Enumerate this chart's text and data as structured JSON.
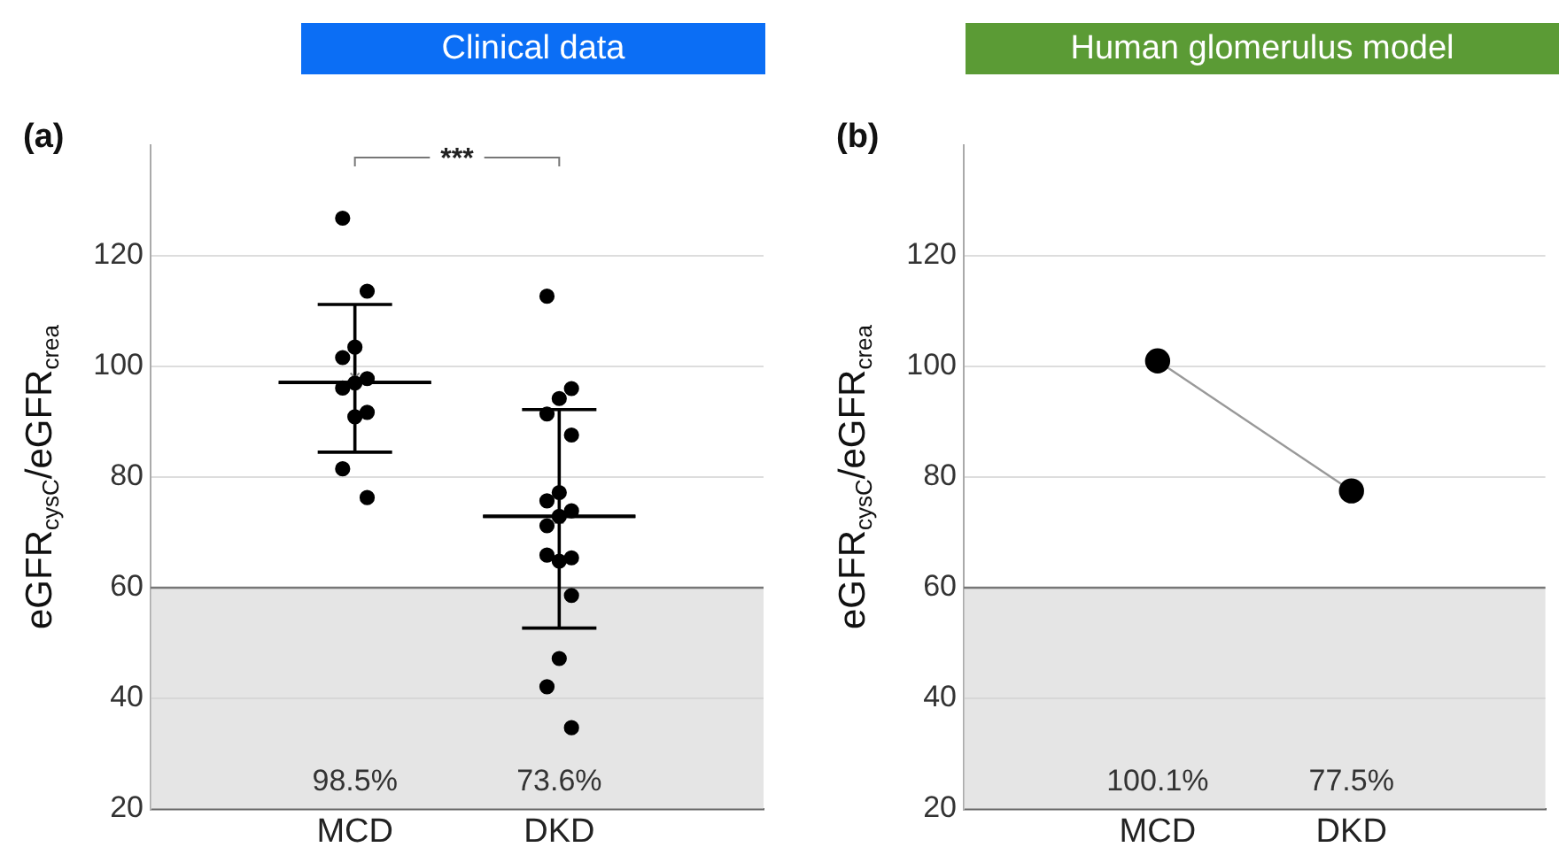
{
  "chart_data": [
    {
      "type": "box",
      "title": "Clinical data",
      "ylabel": "eGFR$_{cysC}$/eGFR$_{crea}$",
      "categories": [
        "MCD",
        "DKD"
      ],
      "ylim": [
        20,
        140
      ],
      "yticks": [
        20,
        40,
        60,
        80,
        100,
        120
      ],
      "grid": "y",
      "legend": false,
      "marker": "circle",
      "bands": [
        {
          "axis": "y",
          "from": 20,
          "to": 60,
          "color": "#d4d4d4"
        }
      ],
      "ref_lines": [
        {
          "axis": "y",
          "value": 60,
          "color": "#777777"
        }
      ],
      "series": [
        {
          "color": "#000000",
          "boxes": [
            {
              "low": 84.5,
              "q1": 97.1,
              "median": 97.1,
              "q3": 97.1,
              "high": 111.2,
              "mean": 98.0
            },
            {
              "low": 52.7,
              "q1": 72.9,
              "median": 72.9,
              "q3": 72.9,
              "high": 92.2,
              "mean": 72.4
            }
          ]
        },
        {
          "type": "scatter",
          "color": "#000000",
          "x": [
            "MCD",
            "MCD",
            "MCD",
            "MCD",
            "MCD",
            "MCD",
            "MCD",
            "MCD",
            "MCD",
            "MCD",
            "MCD",
            "DKD",
            "DKD",
            "DKD",
            "DKD",
            "DKD",
            "DKD",
            "DKD",
            "DKD",
            "DKD",
            "DKD",
            "DKD",
            "DKD",
            "DKD",
            "DKD",
            "DKD",
            "DKD",
            "DKD"
          ],
          "values": [
            126.8,
            113.6,
            103.5,
            101.6,
            97.8,
            97.0,
            96.1,
            91.7,
            90.9,
            81.5,
            76.3,
            112.7,
            96.0,
            94.2,
            91.4,
            87.6,
            77.2,
            75.7,
            73.9,
            72.9,
            71.2,
            65.4,
            64.8,
            65.9,
            58.6,
            47.2,
            42.1,
            34.7
          ]
        }
      ],
      "annotations": [
        "(a)",
        "***",
        "98.5%",
        "73.6%"
      ]
    },
    {
      "type": "line",
      "title": "Human glomerulus model",
      "ylabel": "eGFR$_{cysC}$/eGFR$_{crea}$",
      "categories": [
        "MCD",
        "DKD"
      ],
      "ylim": [
        20,
        140
      ],
      "yticks": [
        20,
        40,
        60,
        80,
        100,
        120
      ],
      "grid": "y",
      "legend": false,
      "marker": "circle",
      "bands": [
        {
          "axis": "y",
          "from": 20,
          "to": 60,
          "color": "#d4d4d4"
        }
      ],
      "ref_lines": [
        {
          "axis": "y",
          "value": 60,
          "color": "#777777"
        }
      ],
      "series": [
        {
          "color": "#999999",
          "values": [
            101,
            77.5
          ]
        }
      ],
      "annotations": [
        "(b)",
        "100.1%",
        "77.5%"
      ]
    }
  ]
}
